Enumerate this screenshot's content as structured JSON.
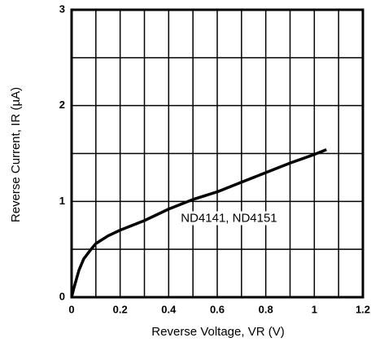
{
  "chart_data": {
    "type": "line",
    "x_label": "Reverse Voltage, VR (V)",
    "y_label": "Reverse Current, IR (µA)",
    "xlim": [
      0,
      1.2
    ],
    "ylim": [
      0,
      3
    ],
    "xticks": [
      0,
      0.2,
      0.4,
      0.6,
      0.8,
      1,
      1.2
    ],
    "yticks": [
      0,
      1,
      2,
      3
    ],
    "x_minor_ticks": [
      0.1,
      0.3,
      0.5,
      0.7,
      0.9,
      1.1
    ],
    "y_minor_ticks": [
      0.5,
      1.5,
      2.5
    ],
    "grid": true,
    "series": [
      {
        "name": "ND4141, ND4151",
        "color": "#000000",
        "x": [
          0,
          0.01,
          0.03,
          0.05,
          0.08,
          0.1,
          0.15,
          0.2,
          0.3,
          0.4,
          0.5,
          0.6,
          0.7,
          0.8,
          0.9,
          1.0,
          1.05
        ],
        "values": [
          0,
          0.1,
          0.28,
          0.4,
          0.5,
          0.56,
          0.64,
          0.7,
          0.8,
          0.92,
          1.02,
          1.1,
          1.2,
          1.3,
          1.4,
          1.49,
          1.54
        ]
      }
    ],
    "annotations": [
      {
        "text": "ND4141, ND4151",
        "x": 0.45,
        "y": 0.82
      }
    ]
  }
}
